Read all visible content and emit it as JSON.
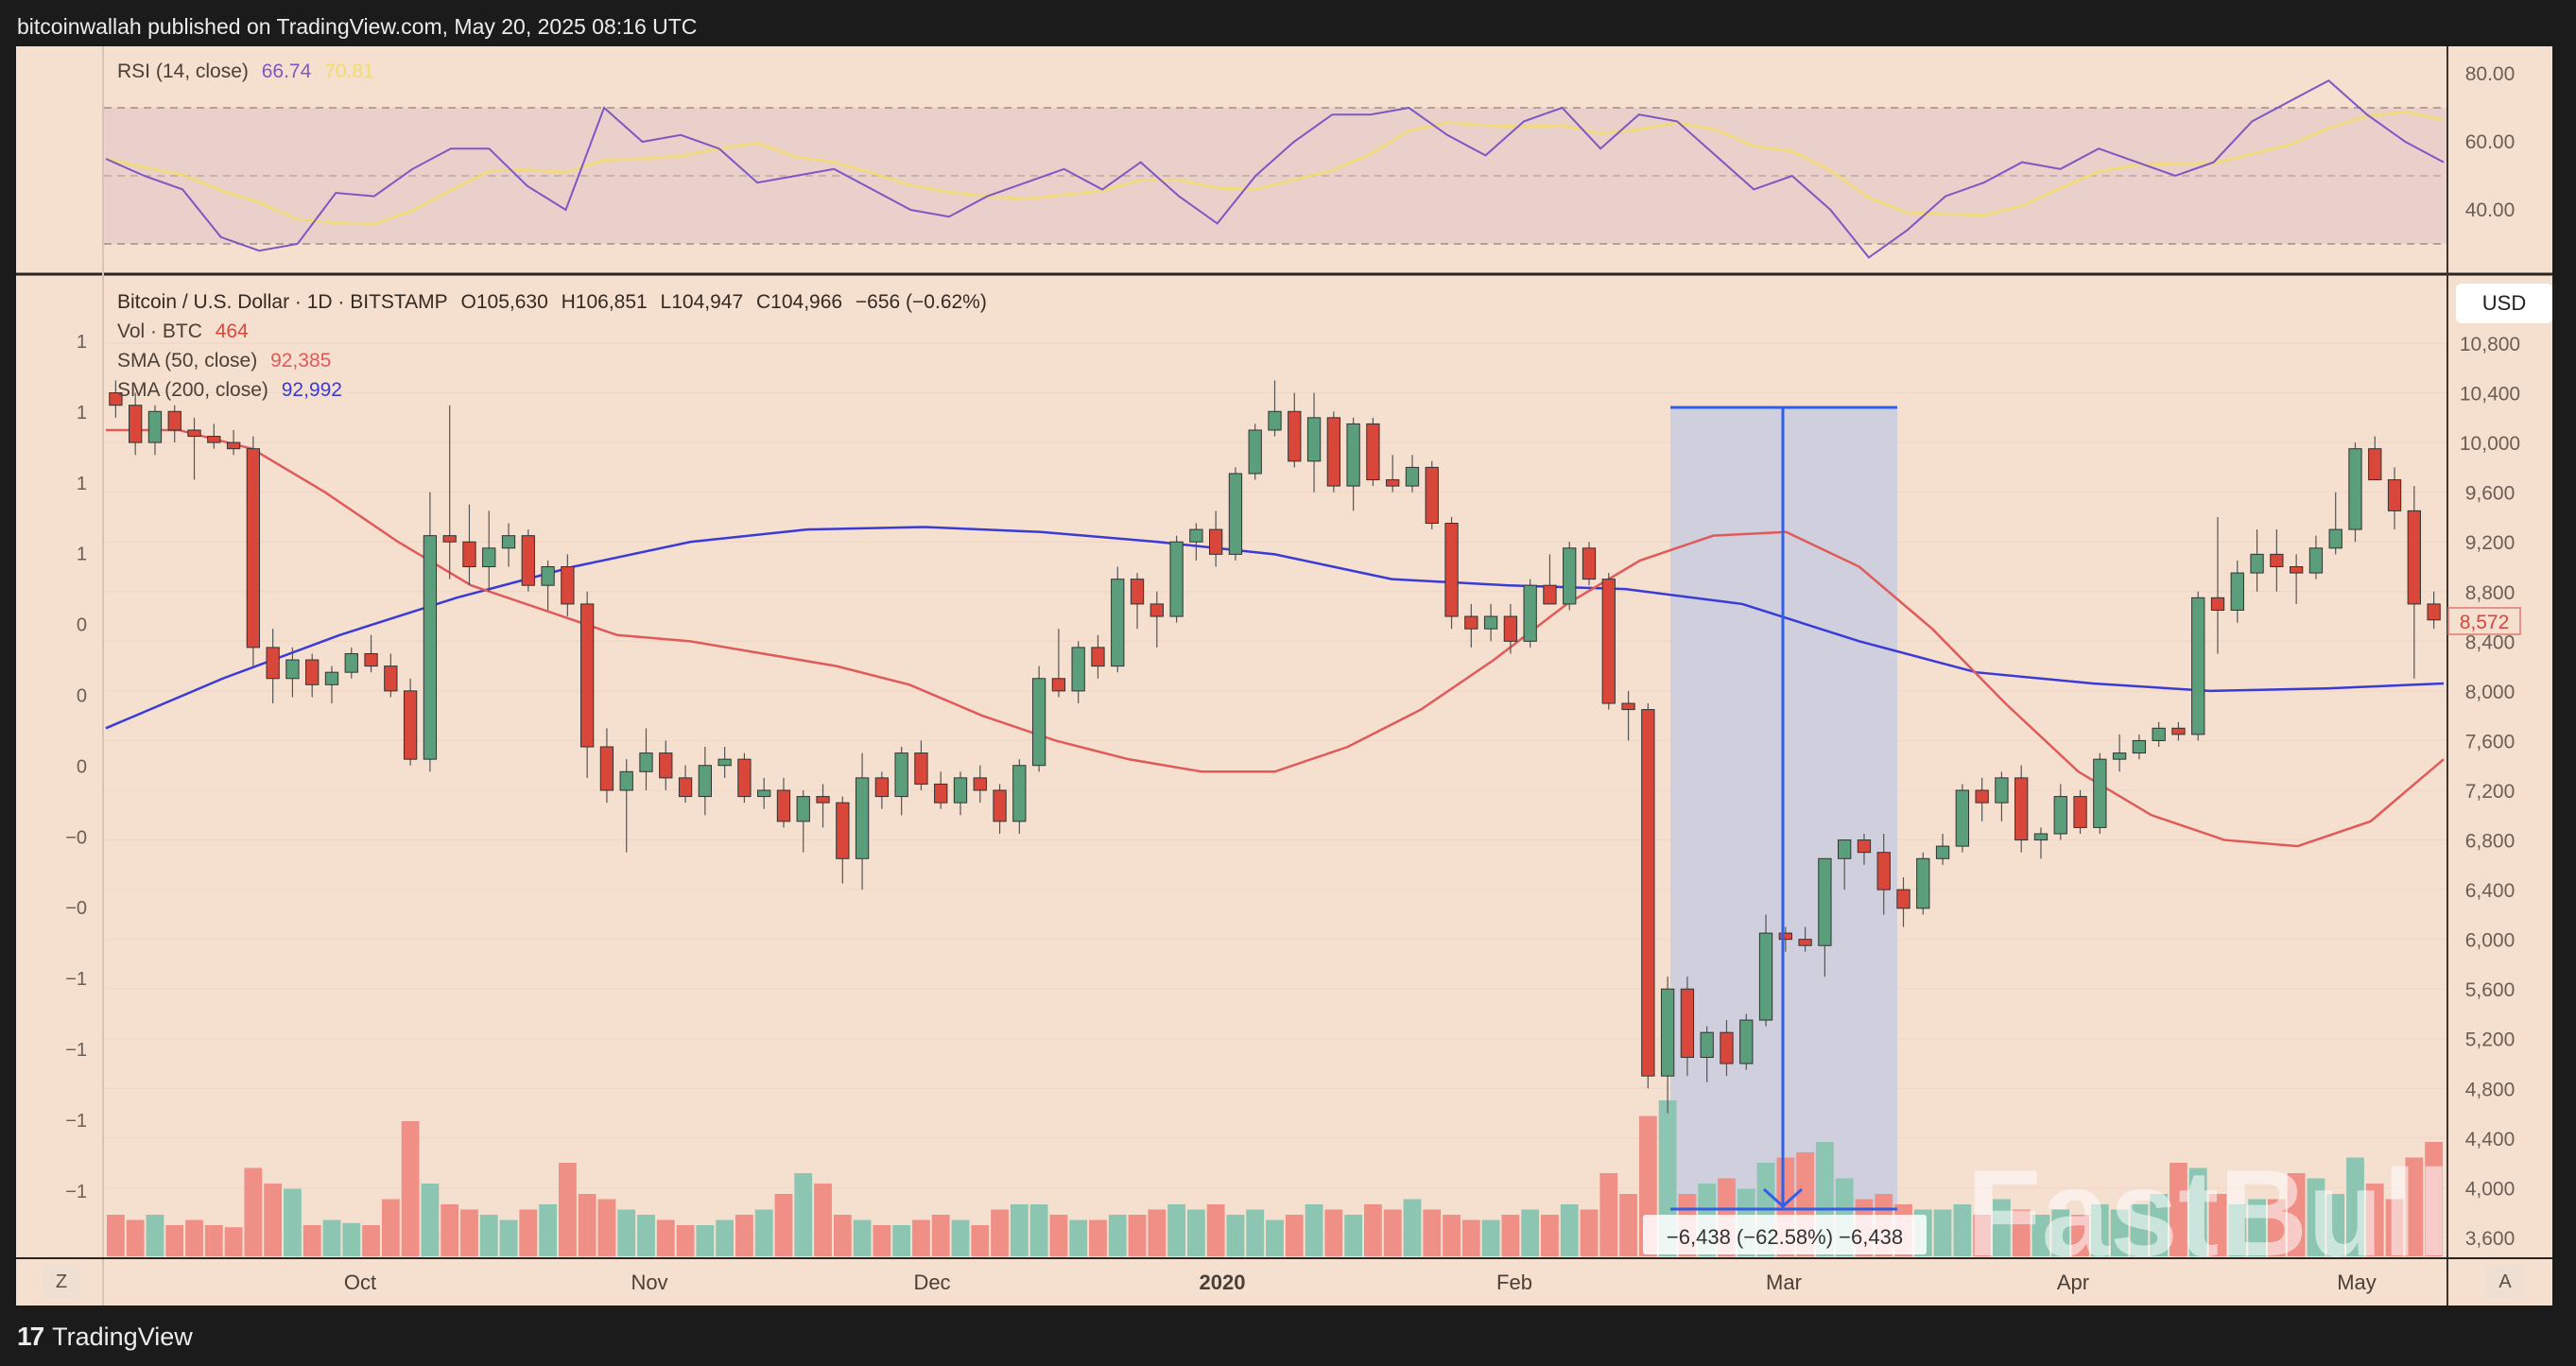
{
  "header": {
    "publish_line": "bitcoinwallah published on TradingView.com, May 20, 2025 08:16 UTC"
  },
  "footer": {
    "logo_glyph": "17",
    "brand": "TradingView"
  },
  "colors": {
    "background": "#f5dfcf",
    "up": "#5a9e7c",
    "down": "#d9473a",
    "vol_up": "#8cc6b3",
    "vol_down": "#ef8f85",
    "sma50": "#e05a5a",
    "sma200": "#3a3ad6",
    "rsi": "#7e57c2",
    "rsi_ma": "#f2dc6a",
    "measure": "#2f5fe8",
    "measure_fill": "#c9cce0"
  },
  "rsi_pane": {
    "label": "RSI (14, close)",
    "value": "66.74",
    "ma_value": "70.81",
    "axis_ticks": [
      "80.00",
      "60.00",
      "40.00"
    ]
  },
  "price_pane": {
    "symbol_line": "Bitcoin / U.S. Dollar · 1D · BITSTAMP",
    "open": "O105,630",
    "high": "H106,851",
    "low": "L104,947",
    "close": "C104,966",
    "change": "−656 (−0.62%)",
    "vol_label": "Vol · BTC",
    "vol_value": "464",
    "sma50_label": "SMA (50, close)",
    "sma50_value": "92,385",
    "sma200_label": "SMA (200, close)",
    "sma200_value": "92,992",
    "currency": "USD",
    "last_price_tag": "8,572",
    "right_axis_ticks": [
      "10,800",
      "10,400",
      "10,000",
      "9,600",
      "9,200",
      "8,800",
      "8,400",
      "8,000",
      "7,600",
      "7,200",
      "6,800",
      "6,400",
      "6,000",
      "5,600",
      "5,200",
      "4,800",
      "4,400",
      "4,000",
      "3,600"
    ],
    "left_axis_ticks": [
      "1",
      "1",
      "1",
      "1",
      "0",
      "0",
      "0",
      "−0",
      "−0",
      "−1",
      "−1",
      "−1",
      "−1"
    ],
    "measure_label": "−6,438 (−62.58%) −6,438",
    "watermark": "FastBull"
  },
  "time_axis": {
    "labels": [
      "Oct",
      "Nov",
      "Dec",
      "2020",
      "Feb",
      "Mar",
      "Apr",
      "May"
    ],
    "left_button": "Z",
    "right_button": "A"
  },
  "chart_data": {
    "type": "candlestick",
    "title": "Bitcoin / U.S. Dollar · 1D · BITSTAMP",
    "xlabel": "",
    "ylabel": "USD",
    "ylim": [
      3500,
      11000
    ],
    "x_ticks": [
      "Oct",
      "Nov",
      "Dec",
      "2020",
      "Feb",
      "Mar",
      "Apr",
      "May"
    ],
    "candles_ohlc_approx": [
      [
        10400,
        10500,
        10200,
        10300
      ],
      [
        10300,
        10400,
        9900,
        10000
      ],
      [
        10000,
        10300,
        9900,
        10250
      ],
      [
        10250,
        10300,
        10000,
        10100
      ],
      [
        10100,
        10200,
        9700,
        10050
      ],
      [
        10050,
        10150,
        9950,
        10000
      ],
      [
        10000,
        10100,
        9900,
        9950
      ],
      [
        9950,
        10050,
        8200,
        8350
      ],
      [
        8350,
        8500,
        7900,
        8100
      ],
      [
        8100,
        8350,
        7950,
        8250
      ],
      [
        8250,
        8300,
        7950,
        8050
      ],
      [
        8050,
        8200,
        7900,
        8150
      ],
      [
        8150,
        8350,
        8100,
        8300
      ],
      [
        8300,
        8450,
        8150,
        8200
      ],
      [
        8200,
        8300,
        7950,
        8000
      ],
      [
        8000,
        8100,
        7400,
        7450
      ],
      [
        7450,
        9600,
        7350,
        9250
      ],
      [
        9250,
        10300,
        8900,
        9200
      ],
      [
        9200,
        9500,
        8850,
        9000
      ],
      [
        9000,
        9450,
        8800,
        9150
      ],
      [
        9150,
        9350,
        9000,
        9250
      ],
      [
        9250,
        9300,
        8800,
        8850
      ],
      [
        8850,
        9050,
        8650,
        9000
      ],
      [
        9000,
        9100,
        8600,
        8700
      ],
      [
        8700,
        8800,
        7300,
        7550
      ],
      [
        7550,
        7700,
        7100,
        7200
      ],
      [
        7200,
        7450,
        6700,
        7350
      ],
      [
        7350,
        7700,
        7200,
        7500
      ],
      [
        7500,
        7600,
        7200,
        7300
      ],
      [
        7300,
        7400,
        7100,
        7150
      ],
      [
        7150,
        7550,
        7000,
        7400
      ],
      [
        7400,
        7550,
        7300,
        7450
      ],
      [
        7450,
        7500,
        7100,
        7150
      ],
      [
        7150,
        7300,
        7050,
        7200
      ],
      [
        7200,
        7300,
        6900,
        6950
      ],
      [
        6950,
        7200,
        6700,
        7150
      ],
      [
        7150,
        7250,
        6900,
        7100
      ],
      [
        7100,
        7150,
        6450,
        6650
      ],
      [
        6650,
        7500,
        6400,
        7300
      ],
      [
        7300,
        7350,
        7050,
        7150
      ],
      [
        7150,
        7550,
        7000,
        7500
      ],
      [
        7500,
        7600,
        7200,
        7250
      ],
      [
        7250,
        7350,
        7050,
        7100
      ],
      [
        7100,
        7350,
        7000,
        7300
      ],
      [
        7300,
        7400,
        7100,
        7200
      ],
      [
        7200,
        7250,
        6850,
        6950
      ],
      [
        6950,
        7450,
        6850,
        7400
      ],
      [
        7400,
        8200,
        7350,
        8100
      ],
      [
        8100,
        8500,
        7950,
        8000
      ],
      [
        8000,
        8400,
        7900,
        8350
      ],
      [
        8350,
        8450,
        8100,
        8200
      ],
      [
        8200,
        9000,
        8150,
        8900
      ],
      [
        8900,
        8950,
        8500,
        8700
      ],
      [
        8700,
        8800,
        8350,
        8600
      ],
      [
        8600,
        9250,
        8550,
        9200
      ],
      [
        9200,
        9350,
        9050,
        9300
      ],
      [
        9300,
        9450,
        9000,
        9100
      ],
      [
        9100,
        9800,
        9050,
        9750
      ],
      [
        9750,
        10150,
        9700,
        10100
      ],
      [
        10100,
        10500,
        10050,
        10250
      ],
      [
        10250,
        10400,
        9800,
        9850
      ],
      [
        9850,
        10400,
        9600,
        10200
      ],
      [
        10200,
        10250,
        9600,
        9650
      ],
      [
        9650,
        10200,
        9450,
        10150
      ],
      [
        10150,
        10200,
        9650,
        9700
      ],
      [
        9700,
        9900,
        9600,
        9650
      ],
      [
        9650,
        9900,
        9600,
        9800
      ],
      [
        9800,
        9850,
        9300,
        9350
      ],
      [
        9350,
        9400,
        8500,
        8600
      ],
      [
        8600,
        8700,
        8350,
        8500
      ],
      [
        8500,
        8700,
        8400,
        8600
      ],
      [
        8600,
        8700,
        8300,
        8400
      ],
      [
        8400,
        8900,
        8350,
        8850
      ],
      [
        8850,
        9100,
        8700,
        8700
      ],
      [
        8700,
        9200,
        8650,
        9150
      ],
      [
        9150,
        9200,
        8850,
        8900
      ],
      [
        8900,
        8950,
        7850,
        7900
      ],
      [
        7900,
        8000,
        7600,
        7850
      ],
      [
        7850,
        7900,
        4800,
        4900
      ],
      [
        4900,
        5700,
        4600,
        5600
      ],
      [
        5600,
        5700,
        4900,
        5050
      ],
      [
        5050,
        5300,
        4850,
        5250
      ],
      [
        5250,
        5350,
        4900,
        5000
      ],
      [
        5000,
        5400,
        4950,
        5350
      ],
      [
        5350,
        6200,
        5300,
        6050
      ],
      [
        6050,
        6100,
        5900,
        6000
      ],
      [
        6000,
        6100,
        5900,
        5950
      ],
      [
        5950,
        6450,
        5700,
        6650
      ],
      [
        6650,
        6800,
        6400,
        6800
      ],
      [
        6800,
        6850,
        6600,
        6700
      ],
      [
        6700,
        6850,
        6200,
        6400
      ],
      [
        6400,
        6500,
        6100,
        6250
      ],
      [
        6250,
        6700,
        6200,
        6650
      ],
      [
        6650,
        6850,
        6600,
        6750
      ],
      [
        6750,
        7250,
        6700,
        7200
      ],
      [
        7200,
        7300,
        6950,
        7100
      ],
      [
        7100,
        7350,
        6950,
        7300
      ],
      [
        7300,
        7400,
        6700,
        6800
      ],
      [
        6800,
        6900,
        6650,
        6850
      ],
      [
        6850,
        7250,
        6800,
        7150
      ],
      [
        7150,
        7200,
        6850,
        6900
      ],
      [
        6900,
        7500,
        6850,
        7450
      ],
      [
        7450,
        7650,
        7350,
        7500
      ],
      [
        7500,
        7650,
        7450,
        7600
      ],
      [
        7600,
        7750,
        7550,
        7700
      ],
      [
        7700,
        7750,
        7600,
        7650
      ],
      [
        7650,
        8800,
        7600,
        8750
      ],
      [
        8750,
        9400,
        8300,
        8650
      ],
      [
        8650,
        9050,
        8550,
        8950
      ],
      [
        8950,
        9300,
        8800,
        9100
      ],
      [
        9100,
        9300,
        8800,
        9000
      ],
      [
        9000,
        9100,
        8700,
        8950
      ],
      [
        8950,
        9250,
        8900,
        9150
      ],
      [
        9150,
        9600,
        9100,
        9300
      ],
      [
        9300,
        10000,
        9200,
        9950
      ],
      [
        9950,
        10050,
        9700,
        9700
      ],
      [
        9700,
        9800,
        9300,
        9450
      ],
      [
        9450,
        9650,
        8100,
        8700
      ],
      [
        8700,
        8800,
        8500,
        8572
      ]
    ],
    "sma50_approx": [
      10100,
      10100,
      9950,
      9600,
      9200,
      8850,
      8650,
      8450,
      8400,
      8300,
      8200,
      8050,
      7800,
      7600,
      7450,
      7350,
      7350,
      7550,
      7850,
      8250,
      8700,
      9050,
      9250,
      9280,
      9000,
      8500,
      7900,
      7350,
      7000,
      6800,
      6750,
      6950,
      7450
    ],
    "sma200_approx": [
      7700,
      8100,
      8450,
      8750,
      9000,
      9200,
      9300,
      9320,
      9280,
      9200,
      9100,
      8900,
      8850,
      8820,
      8700,
      8400,
      8150,
      8060,
      8000,
      8020,
      8060
    ],
    "rsi_approx": [
      55,
      50,
      46,
      32,
      28,
      30,
      45,
      44,
      52,
      58,
      58,
      47,
      40,
      70,
      60,
      62,
      58,
      48,
      50,
      52,
      46,
      40,
      38,
      44,
      48,
      52,
      46,
      54,
      44,
      36,
      50,
      60,
      68,
      68,
      70,
      62,
      56,
      66,
      70,
      58,
      68,
      66,
      56,
      46,
      50,
      40,
      26,
      34,
      44,
      48,
      54,
      52,
      58,
      54,
      50,
      54,
      66,
      72,
      78,
      68,
      60,
      54
    ],
    "volume_approx": [
      0.4,
      0.35,
      0.4,
      0.3,
      0.35,
      0.3,
      0.28,
      0.85,
      0.7,
      0.65,
      0.3,
      0.35,
      0.32,
      0.3,
      0.55,
      1.3,
      0.7,
      0.5,
      0.45,
      0.4,
      0.35,
      0.45,
      0.5,
      0.9,
      0.6,
      0.55,
      0.45,
      0.4,
      0.35,
      0.3,
      0.3,
      0.35,
      0.4,
      0.45,
      0.6,
      0.8,
      0.7,
      0.4,
      0.35,
      0.3,
      0.3,
      0.35,
      0.4,
      0.35,
      0.3,
      0.45,
      0.5,
      0.5,
      0.4,
      0.35,
      0.35,
      0.4,
      0.4,
      0.45,
      0.5,
      0.45,
      0.5,
      0.4,
      0.45,
      0.35,
      0.4,
      0.5,
      0.45,
      0.4,
      0.5,
      0.45,
      0.55,
      0.45,
      0.4,
      0.35,
      0.35,
      0.4,
      0.45,
      0.4,
      0.5,
      0.45,
      0.8,
      0.6,
      1.35,
      1.5,
      0.6,
      0.7,
      0.75,
      0.65,
      0.9,
      0.95,
      1.0,
      1.1,
      0.75,
      0.55,
      0.6,
      0.5,
      0.45,
      0.45,
      0.5,
      0.4,
      0.55,
      0.45,
      0.4,
      0.45,
      0.4,
      0.5,
      0.45,
      0.5,
      0.6,
      0.9,
      0.85,
      0.6,
      0.5,
      0.55,
      0.55,
      0.8,
      0.75,
      0.6,
      0.95,
      0.7,
      0.55,
      0.95,
      1.1
    ]
  }
}
